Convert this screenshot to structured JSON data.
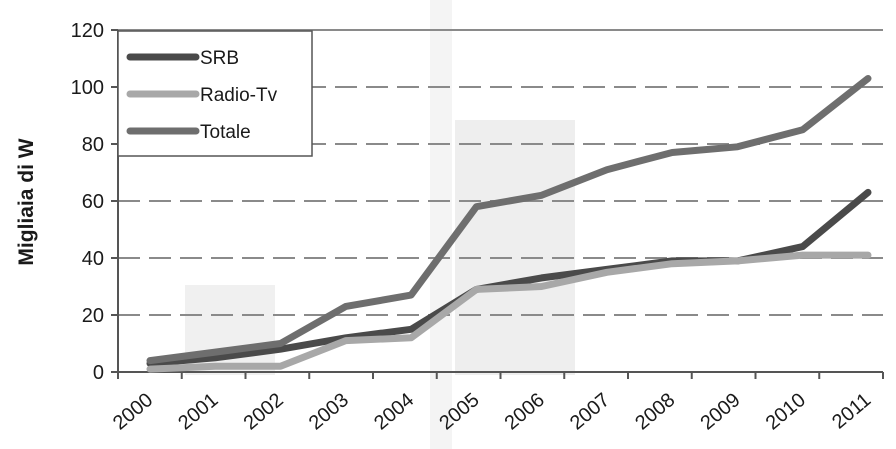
{
  "chart_data": {
    "type": "line",
    "title": "",
    "xlabel": "",
    "ylabel": "Migliaia di W",
    "ylim": [
      0,
      120
    ],
    "yticks": [
      0,
      20,
      40,
      60,
      80,
      100,
      120
    ],
    "categories": [
      "2000",
      "2001",
      "2002",
      "2003",
      "2004",
      "2005",
      "2006",
      "2007",
      "2008",
      "2009",
      "2010",
      "2011"
    ],
    "grid": "dashed horizontal",
    "legend_position": "top-left",
    "series": [
      {
        "name": "SRB",
        "color": "#4a4a4a",
        "values": [
          3,
          5,
          8,
          12,
          15,
          29,
          33,
          36,
          39,
          39,
          44,
          63
        ]
      },
      {
        "name": "Radio-Tv",
        "color": "#a8a8a8",
        "values": [
          1,
          2,
          2,
          11,
          12,
          29,
          30,
          35,
          38,
          39,
          41,
          41
        ]
      },
      {
        "name": "Totale",
        "color": "#6e6e6e",
        "values": [
          4,
          7,
          10,
          23,
          27,
          58,
          62,
          71,
          77,
          79,
          85,
          103
        ]
      }
    ]
  }
}
